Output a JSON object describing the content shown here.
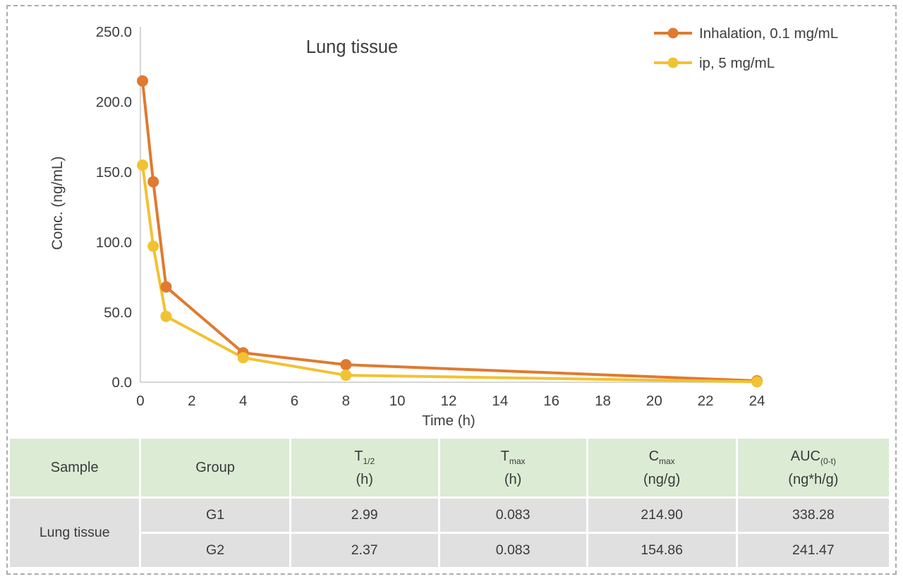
{
  "chart_data": {
    "type": "line",
    "title": "Lung tissue",
    "xlabel": "Time (h)",
    "ylabel": "Conc. (ng/mL)",
    "x": [
      0.083,
      0.5,
      1,
      4,
      8,
      24
    ],
    "series": [
      {
        "name": "Inhalation, 0.1 mg/mL",
        "color": "#DF7A30",
        "values": [
          214.9,
          143,
          68,
          21,
          12.5,
          1.0
        ]
      },
      {
        "name": "ip, 5 mg/mL",
        "color": "#F1C232",
        "values": [
          154.86,
          97,
          47,
          17.5,
          5.0,
          0.3
        ]
      }
    ],
    "xlim": [
      0,
      24
    ],
    "ylim": [
      0,
      250
    ],
    "xticks": [
      0,
      2,
      4,
      6,
      8,
      10,
      12,
      14,
      16,
      18,
      20,
      22,
      24
    ],
    "xtick_labels": [
      "0",
      "2",
      "4",
      "6",
      "8",
      "10",
      "12",
      "14",
      "16",
      "18",
      "20",
      "22",
      "24"
    ],
    "yticks": [
      0,
      50,
      100,
      150,
      200,
      250
    ],
    "ytick_labels": [
      "0.0",
      "50.0",
      "100.0",
      "150.0",
      "200.0",
      "250.0"
    ],
    "grid": false,
    "legend_position": "top-right",
    "axis_color": "#c9c9c9",
    "text_color": "#3d3d3d"
  },
  "table": {
    "headers": [
      {
        "label": "Sample"
      },
      {
        "label": "Group"
      },
      {
        "base": "T",
        "sub": "1/2",
        "unit": "(h)"
      },
      {
        "base": "T",
        "sub": "max",
        "unit": "(h)"
      },
      {
        "base": "C",
        "sub": "max",
        "unit": "(ng/g)"
      },
      {
        "base": "AUC",
        "sub": "(0-t)",
        "unit": "(ng*h/g)"
      }
    ],
    "sample_label": "Lung tissue",
    "rows": [
      {
        "group": "G1",
        "t12": "2.99",
        "tmax": "0.083",
        "cmax": "214.90",
        "auc": "338.28"
      },
      {
        "group": "G2",
        "t12": "2.37",
        "tmax": "0.083",
        "cmax": "154.86",
        "auc": "241.47"
      }
    ],
    "header_bg": "#dcebd4",
    "body_bg": "#e0e0e0"
  }
}
